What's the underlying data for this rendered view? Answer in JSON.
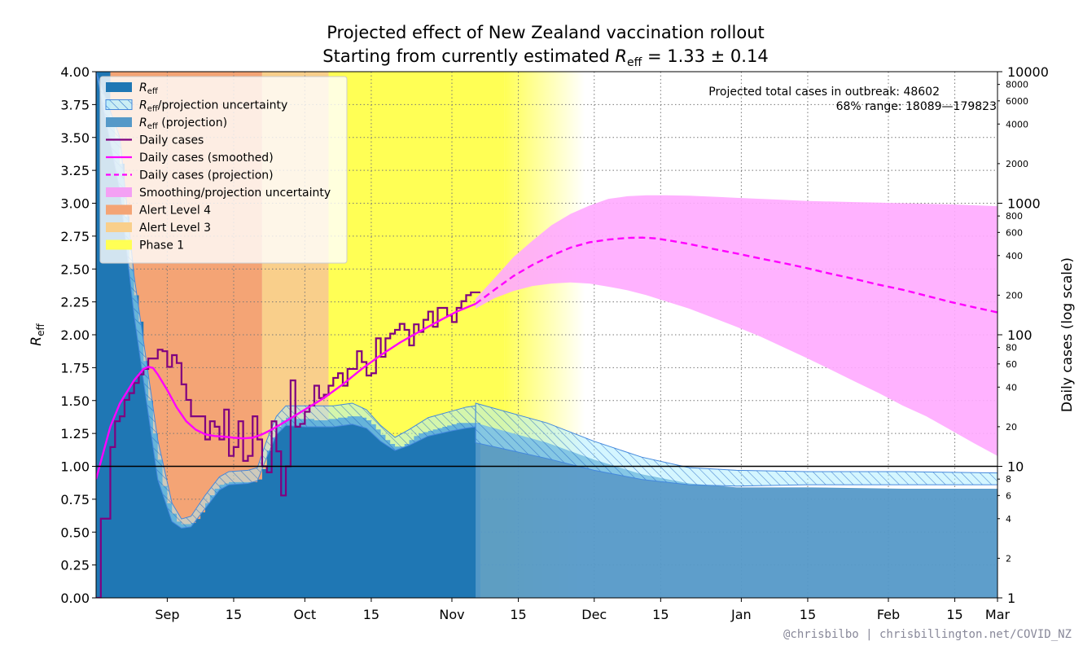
{
  "chart_data": {
    "type": "area",
    "title": "Projected effect of New Zealand vaccination rollout",
    "subtitle_prefix": "Starting from currently estimated ",
    "subtitle_symbol": "R",
    "subtitle_sub": "eff",
    "subtitle_value": " = 1.33 ± 0.14",
    "ylabel_left_symbol": "R",
    "ylabel_left_sub": "eff",
    "ylabel_right": "Daily cases (log scale)",
    "ylim_left": [
      0,
      4
    ],
    "ylim_right": [
      1,
      10000
    ],
    "x_range_days": [
      0,
      190
    ],
    "x_ticks": [
      {
        "day": 15,
        "label": "Sep"
      },
      {
        "day": 29,
        "label": "15"
      },
      {
        "day": 44,
        "label": "Oct"
      },
      {
        "day": 58,
        "label": "15"
      },
      {
        "day": 75,
        "label": "Nov"
      },
      {
        "day": 89,
        "label": "15"
      },
      {
        "day": 105,
        "label": "Dec"
      },
      {
        "day": 119,
        "label": "15"
      },
      {
        "day": 136,
        "label": "Jan"
      },
      {
        "day": 150,
        "label": "15"
      },
      {
        "day": 167,
        "label": "Feb"
      },
      {
        "day": 181,
        "label": "15"
      },
      {
        "day": 195,
        "label": "Mar"
      }
    ],
    "y_ticks_left": [
      "0.00",
      "0.25",
      "0.50",
      "0.75",
      "1.00",
      "1.25",
      "1.50",
      "1.75",
      "2.00",
      "2.25",
      "2.50",
      "2.75",
      "3.00",
      "3.25",
      "3.50",
      "3.75",
      "4.00"
    ],
    "y_ticks_right_major": [
      {
        "value": 1,
        "label": "1"
      },
      {
        "value": 10,
        "label": "10"
      },
      {
        "value": 100,
        "label": "100"
      },
      {
        "value": 1000,
        "label": "1000"
      },
      {
        "value": 10000,
        "label": "10000"
      }
    ],
    "y_ticks_right_minor": [
      {
        "value": 2,
        "label": "2"
      },
      {
        "value": 4,
        "label": "4"
      },
      {
        "value": 6,
        "label": "6"
      },
      {
        "value": 8,
        "label": "8"
      },
      {
        "value": 20,
        "label": "20"
      },
      {
        "value": 40,
        "label": "40"
      },
      {
        "value": 60,
        "label": "60"
      },
      {
        "value": 80,
        "label": "80"
      },
      {
        "value": 200,
        "label": "200"
      },
      {
        "value": 400,
        "label": "400"
      },
      {
        "value": 600,
        "label": "600"
      },
      {
        "value": 800,
        "label": "800"
      },
      {
        "value": 2000,
        "label": "2000"
      },
      {
        "value": 4000,
        "label": "4000"
      },
      {
        "value": 6000,
        "label": "6000"
      },
      {
        "value": 8000,
        "label": "8000"
      }
    ],
    "phases": [
      {
        "name": "Alert Level 4",
        "start_day": 2,
        "end_day": 35,
        "color": "#f4a475"
      },
      {
        "name": "Alert Level 3",
        "start_day": 35,
        "end_day": 49,
        "color": "#f9cf8b"
      },
      {
        "name": "Phase 1",
        "start_day": 49,
        "end_day": 103,
        "color": "#ffff55"
      }
    ],
    "reff_observed_end_day": 80,
    "reff_series": [
      [
        0,
        4.0
      ],
      [
        1,
        4.0
      ],
      [
        2,
        4.0
      ],
      [
        3,
        3.6
      ],
      [
        4,
        3.5
      ],
      [
        5,
        3.3
      ],
      [
        6,
        2.9
      ],
      [
        7,
        2.5
      ],
      [
        8,
        2.3
      ],
      [
        9,
        2.1
      ],
      [
        10,
        1.8
      ],
      [
        11,
        1.5
      ],
      [
        12,
        1.25
      ],
      [
        13,
        1.05
      ],
      [
        14,
        0.85
      ],
      [
        15,
        0.72
      ],
      [
        16,
        0.64
      ],
      [
        17,
        0.58
      ],
      [
        18,
        0.56
      ],
      [
        19,
        0.56
      ],
      [
        20,
        0.57
      ],
      [
        21,
        0.6
      ],
      [
        22,
        0.65
      ],
      [
        23,
        0.72
      ],
      [
        24,
        0.78
      ],
      [
        25,
        0.83
      ],
      [
        26,
        0.86
      ],
      [
        27,
        0.87
      ],
      [
        28,
        0.88
      ],
      [
        29,
        0.88
      ],
      [
        30,
        0.88
      ],
      [
        31,
        0.88
      ],
      [
        32,
        0.88
      ],
      [
        33,
        0.88
      ],
      [
        34,
        0.9
      ],
      [
        35,
        0.98
      ],
      [
        36,
        1.12
      ],
      [
        37,
        1.22
      ],
      [
        38,
        1.3
      ],
      [
        39,
        1.35
      ],
      [
        40,
        1.37
      ],
      [
        41,
        1.37
      ],
      [
        42,
        1.36
      ],
      [
        43,
        1.36
      ],
      [
        44,
        1.36
      ],
      [
        45,
        1.36
      ],
      [
        46,
        1.35
      ],
      [
        47,
        1.35
      ],
      [
        48,
        1.35
      ],
      [
        49,
        1.36
      ],
      [
        50,
        1.36
      ],
      [
        51,
        1.37
      ],
      [
        52,
        1.37
      ],
      [
        53,
        1.38
      ],
      [
        54,
        1.38
      ],
      [
        55,
        1.38
      ],
      [
        56,
        1.37
      ],
      [
        57,
        1.35
      ],
      [
        58,
        1.32
      ],
      [
        59,
        1.28
      ],
      [
        60,
        1.24
      ],
      [
        61,
        1.2
      ],
      [
        62,
        1.17
      ],
      [
        63,
        1.15
      ],
      [
        64,
        1.15
      ],
      [
        65,
        1.17
      ],
      [
        66,
        1.2
      ],
      [
        67,
        1.23
      ],
      [
        68,
        1.25
      ],
      [
        69,
        1.26
      ],
      [
        70,
        1.27
      ],
      [
        71,
        1.28
      ],
      [
        72,
        1.29
      ],
      [
        73,
        1.3
      ],
      [
        74,
        1.31
      ],
      [
        75,
        1.32
      ],
      [
        76,
        1.33
      ],
      [
        77,
        1.33
      ],
      [
        78,
        1.33
      ],
      [
        79,
        1.33
      ],
      [
        80,
        1.33
      ]
    ],
    "reff_band": [
      [
        0,
        4.0,
        4.0
      ],
      [
        5,
        3.1,
        3.5
      ],
      [
        8,
        2.15,
        2.45
      ],
      [
        10,
        1.65,
        1.95
      ],
      [
        13,
        0.9,
        1.2
      ],
      [
        16,
        0.58,
        0.72
      ],
      [
        18,
        0.53,
        0.6
      ],
      [
        20,
        0.54,
        0.62
      ],
      [
        23,
        0.68,
        0.78
      ],
      [
        26,
        0.82,
        0.92
      ],
      [
        28,
        0.86,
        0.96
      ],
      [
        32,
        0.87,
        0.97
      ],
      [
        34,
        0.89,
        0.99
      ],
      [
        36,
        1.07,
        1.2
      ],
      [
        38,
        1.24,
        1.38
      ],
      [
        40,
        1.31,
        1.46
      ],
      [
        44,
        1.3,
        1.46
      ],
      [
        50,
        1.3,
        1.46
      ],
      [
        54,
        1.32,
        1.48
      ],
      [
        57,
        1.29,
        1.43
      ],
      [
        60,
        1.19,
        1.31
      ],
      [
        63,
        1.12,
        1.22
      ],
      [
        66,
        1.16,
        1.28
      ],
      [
        70,
        1.23,
        1.37
      ],
      [
        75,
        1.27,
        1.42
      ],
      [
        78,
        1.29,
        1.45
      ],
      [
        80,
        1.3,
        1.46
      ]
    ],
    "reff_projection": [
      [
        80,
        1.33
      ],
      [
        95,
        1.18
      ],
      [
        105,
        1.05
      ],
      [
        115,
        0.94
      ],
      [
        125,
        0.87
      ],
      [
        135,
        0.84
      ],
      [
        150,
        0.84
      ],
      [
        170,
        0.83
      ],
      [
        190,
        0.83
      ]
    ],
    "reff_projection_band": [
      [
        80,
        1.18,
        1.48
      ],
      [
        95,
        1.06,
        1.33
      ],
      [
        105,
        0.97,
        1.19
      ],
      [
        115,
        0.9,
        1.07
      ],
      [
        125,
        0.86,
        0.99
      ],
      [
        135,
        0.85,
        0.97
      ],
      [
        150,
        0.86,
        0.96
      ],
      [
        170,
        0.86,
        0.96
      ],
      [
        190,
        0.86,
        0.95
      ]
    ],
    "daily_cases": [
      [
        0,
        1
      ],
      [
        1,
        4
      ],
      [
        2,
        4
      ],
      [
        3,
        14
      ],
      [
        4,
        22
      ],
      [
        5,
        24
      ],
      [
        6,
        32
      ],
      [
        7,
        36
      ],
      [
        8,
        43
      ],
      [
        9,
        50
      ],
      [
        10,
        55
      ],
      [
        11,
        66
      ],
      [
        12,
        66
      ],
      [
        13,
        77
      ],
      [
        14,
        75
      ],
      [
        15,
        57
      ],
      [
        16,
        70
      ],
      [
        17,
        61
      ],
      [
        18,
        42
      ],
      [
        19,
        32
      ],
      [
        20,
        24
      ],
      [
        21,
        24
      ],
      [
        22,
        24
      ],
      [
        23,
        16
      ],
      [
        24,
        22
      ],
      [
        25,
        20
      ],
      [
        26,
        16
      ],
      [
        27,
        27
      ],
      [
        28,
        12
      ],
      [
        29,
        14
      ],
      [
        30,
        22
      ],
      [
        31,
        11
      ],
      [
        32,
        12
      ],
      [
        33,
        24
      ],
      [
        34,
        16
      ],
      [
        35,
        10
      ],
      [
        36,
        9
      ],
      [
        37,
        22
      ],
      [
        38,
        13
      ],
      [
        39,
        6
      ],
      [
        40,
        10
      ],
      [
        41,
        45
      ],
      [
        42,
        20
      ],
      [
        43,
        21
      ],
      [
        44,
        26
      ],
      [
        45,
        29
      ],
      [
        46,
        41
      ],
      [
        47,
        33
      ],
      [
        48,
        35
      ],
      [
        49,
        41
      ],
      [
        50,
        47
      ],
      [
        51,
        51
      ],
      [
        52,
        41
      ],
      [
        53,
        55
      ],
      [
        54,
        55
      ],
      [
        55,
        75
      ],
      [
        56,
        62
      ],
      [
        57,
        49
      ],
      [
        58,
        51
      ],
      [
        59,
        94
      ],
      [
        60,
        68
      ],
      [
        61,
        94
      ],
      [
        62,
        102
      ],
      [
        63,
        109
      ],
      [
        64,
        121
      ],
      [
        65,
        109
      ],
      [
        66,
        83
      ],
      [
        67,
        120
      ],
      [
        68,
        105
      ],
      [
        69,
        130
      ],
      [
        70,
        150
      ],
      [
        71,
        115
      ],
      [
        72,
        160
      ],
      [
        73,
        160
      ],
      [
        74,
        140
      ],
      [
        75,
        125
      ],
      [
        76,
        160
      ],
      [
        77,
        180
      ],
      [
        78,
        200
      ],
      [
        79,
        210
      ],
      [
        80,
        210
      ]
    ],
    "daily_cases_smoothed": [
      [
        0,
        8
      ],
      [
        3,
        20
      ],
      [
        5,
        30
      ],
      [
        8,
        45
      ],
      [
        10,
        55
      ],
      [
        11,
        57
      ],
      [
        12,
        56
      ],
      [
        13,
        50
      ],
      [
        15,
        38
      ],
      [
        17,
        28
      ],
      [
        19,
        22
      ],
      [
        21,
        19
      ],
      [
        23,
        17.5
      ],
      [
        25,
        17
      ],
      [
        27,
        16.8
      ],
      [
        29,
        16.5
      ],
      [
        31,
        16.3
      ],
      [
        33,
        16.5
      ],
      [
        35,
        17.5
      ],
      [
        37,
        19
      ],
      [
        40,
        22
      ],
      [
        44,
        27
      ],
      [
        48,
        33
      ],
      [
        52,
        42
      ],
      [
        56,
        55
      ],
      [
        60,
        70
      ],
      [
        64,
        87
      ],
      [
        68,
        105
      ],
      [
        72,
        126
      ],
      [
        76,
        150
      ],
      [
        80,
        172
      ]
    ],
    "daily_cases_projection": [
      [
        80,
        172
      ],
      [
        84,
        220
      ],
      [
        88,
        280
      ],
      [
        92,
        340
      ],
      [
        96,
        400
      ],
      [
        100,
        460
      ],
      [
        104,
        505
      ],
      [
        108,
        530
      ],
      [
        112,
        545
      ],
      [
        115,
        548
      ],
      [
        118,
        540
      ],
      [
        121,
        520
      ],
      [
        125,
        490
      ],
      [
        130,
        450
      ],
      [
        135,
        415
      ],
      [
        140,
        380
      ],
      [
        145,
        350
      ],
      [
        150,
        320
      ],
      [
        155,
        290
      ],
      [
        160,
        265
      ],
      [
        165,
        240
      ],
      [
        170,
        220
      ],
      [
        175,
        198
      ],
      [
        180,
        178
      ],
      [
        185,
        162
      ],
      [
        190,
        148
      ]
    ],
    "projection_band": [
      [
        80,
        158,
        188
      ],
      [
        84,
        190,
        270
      ],
      [
        88,
        215,
        390
      ],
      [
        92,
        235,
        520
      ],
      [
        96,
        245,
        680
      ],
      [
        100,
        250,
        830
      ],
      [
        104,
        245,
        960
      ],
      [
        108,
        232,
        1080
      ],
      [
        112,
        218,
        1130
      ],
      [
        116,
        200,
        1150
      ],
      [
        120,
        180,
        1150
      ],
      [
        125,
        158,
        1140
      ],
      [
        130,
        135,
        1120
      ],
      [
        135,
        115,
        1100
      ],
      [
        140,
        97,
        1080
      ],
      [
        145,
        80,
        1060
      ],
      [
        150,
        66,
        1040
      ],
      [
        155,
        54,
        1030
      ],
      [
        160,
        44,
        1020
      ],
      [
        165,
        36,
        1010
      ],
      [
        170,
        29,
        1000
      ],
      [
        175,
        24,
        990
      ],
      [
        180,
        19,
        980
      ],
      [
        185,
        15,
        965
      ],
      [
        190,
        12,
        950
      ]
    ],
    "legend": [
      {
        "label_symbol": "R",
        "label_sub": "eff",
        "label_rest": "",
        "kind": "patch",
        "color": "#1f77b4"
      },
      {
        "label_symbol": "R",
        "label_sub": "eff",
        "label_rest": "/projection uncertainty",
        "kind": "hatch",
        "color": "#aaddff"
      },
      {
        "label_symbol": "R",
        "label_sub": "eff",
        "label_rest": " (projection)",
        "kind": "patch",
        "color": "#5599c8"
      },
      {
        "label_symbol": "",
        "label_sub": "",
        "label_rest": "Daily cases",
        "kind": "line",
        "color": "#800080"
      },
      {
        "label_symbol": "",
        "label_sub": "",
        "label_rest": "Daily cases (smoothed)",
        "kind": "line",
        "color": "#ff00ff"
      },
      {
        "label_symbol": "",
        "label_sub": "",
        "label_rest": "Daily cases (projection)",
        "kind": "dashed",
        "color": "#ff00ff"
      },
      {
        "label_symbol": "",
        "label_sub": "",
        "label_rest": "Smoothing/projection uncertainty",
        "kind": "patch",
        "color": "#f4a0f4"
      },
      {
        "label_symbol": "",
        "label_sub": "",
        "label_rest": "Alert Level 4",
        "kind": "patch",
        "color": "#f4a475"
      },
      {
        "label_symbol": "",
        "label_sub": "",
        "label_rest": "Alert Level 3",
        "kind": "patch",
        "color": "#f9cf8b"
      },
      {
        "label_symbol": "",
        "label_sub": "",
        "label_rest": "Phase 1",
        "kind": "patch",
        "color": "#ffff55"
      }
    ],
    "annotation_line1": "Projected total cases in outbreak:  48602",
    "annotation_line2": "68% range:  18089—179823",
    "grid": true,
    "legend_position": "top-left"
  },
  "credit": "@chrisbilbo | chrisbillington.net/COVID_NZ",
  "colors": {
    "reff": "#1f77b4",
    "reff_projection": "#5599c8",
    "uncertainty_hatch": "#aaddff",
    "daily_cases": "#800080",
    "smoothed": "#ff00ff",
    "projection_band": "#ffaaff"
  }
}
